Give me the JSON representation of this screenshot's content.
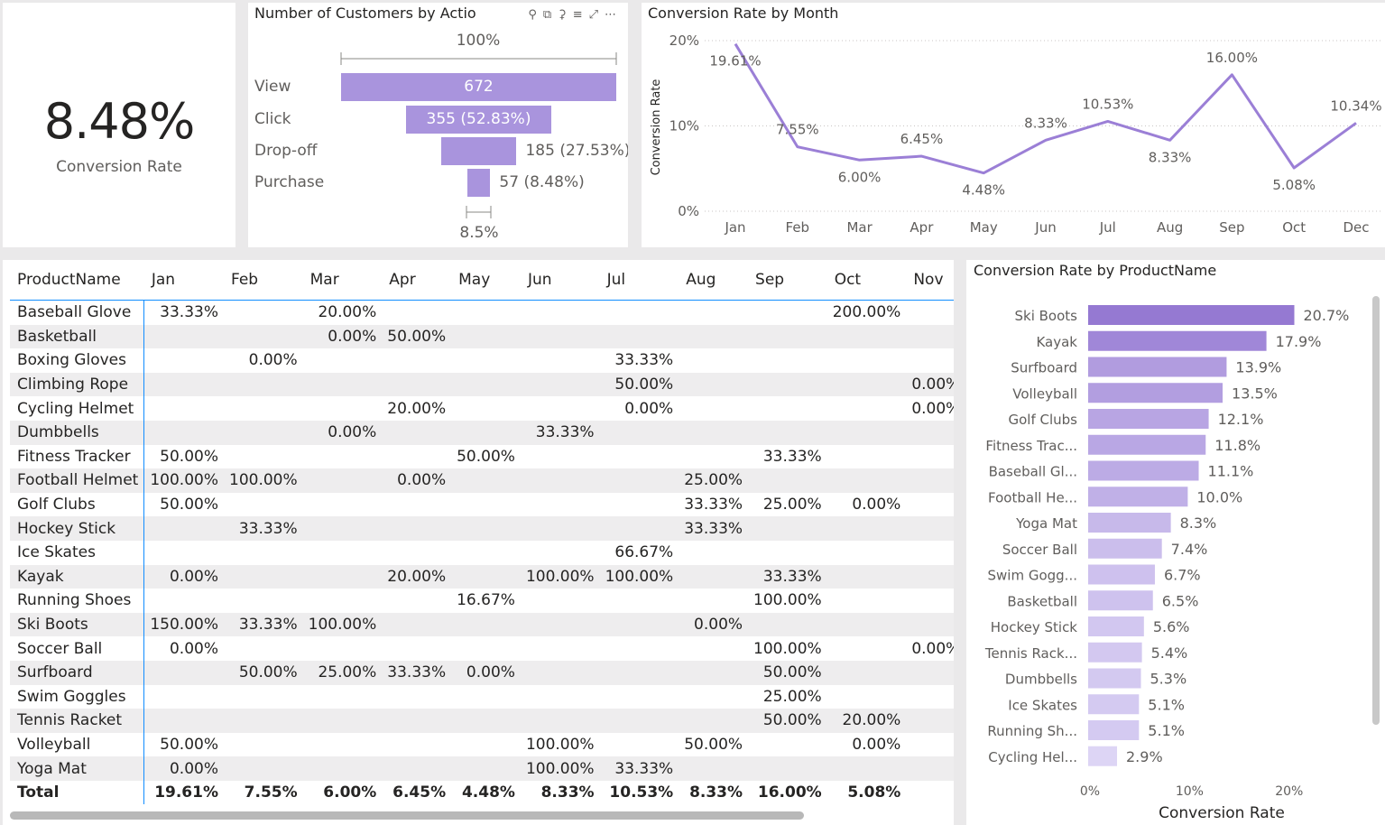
{
  "kpi": {
    "value": "8.48%",
    "label": "Conversion Rate"
  },
  "funnel": {
    "title": "Number of Customers by Actio",
    "top_pct": "100%",
    "bottom_pct": "8.5%",
    "stages": [
      {
        "label": "View",
        "value": 672,
        "text": "672"
      },
      {
        "label": "Click",
        "value": 355,
        "text": "355 (52.83%)"
      },
      {
        "label": "Drop-off",
        "value": 185,
        "text": "185 (27.53%)"
      },
      {
        "label": "Purchase",
        "value": 57,
        "text": "57 (8.48%)"
      }
    ],
    "icons": [
      "pin-icon",
      "copy-icon",
      "bell-icon",
      "filter-icon",
      "focus-mode-icon",
      "more-options-icon"
    ]
  },
  "line_chart": {
    "title": "Conversion Rate by Month",
    "chart_data": {
      "type": "line",
      "x": [
        "Jan",
        "Feb",
        "Mar",
        "Apr",
        "May",
        "Jun",
        "Jul",
        "Aug",
        "Sep",
        "Oct",
        "Dec"
      ],
      "y": [
        19.61,
        7.55,
        6.0,
        6.45,
        4.48,
        8.33,
        10.53,
        8.33,
        16.0,
        5.08,
        10.34
      ],
      "data_labels": [
        "19.61%",
        "7.55%",
        "6.00%",
        "6.45%",
        "4.48%",
        "8.33%",
        "10.53%",
        "8.33%",
        "16.00%",
        "5.08%",
        "10.34%"
      ],
      "ylabel": "Conversion Rate",
      "xlabel": "",
      "yticks": [
        "0%",
        "10%",
        "20%"
      ],
      "ylim": [
        0,
        20
      ],
      "color": "#9b7fd6",
      "grid": true
    }
  },
  "matrix": {
    "columns": [
      "ProductName",
      "Jan",
      "Feb",
      "Mar",
      "Apr",
      "May",
      "Jun",
      "Jul",
      "Aug",
      "Sep",
      "Oct",
      "Nov"
    ],
    "rows": [
      [
        "Baseball Glove",
        "33.33%",
        "",
        "20.00%",
        "",
        "",
        "",
        "",
        "",
        "",
        "200.00%",
        ""
      ],
      [
        "Basketball",
        "",
        "",
        "0.00%",
        "50.00%",
        "",
        "",
        "",
        "",
        "",
        "",
        ""
      ],
      [
        "Boxing Gloves",
        "",
        "0.00%",
        "",
        "",
        "",
        "",
        "33.33%",
        "",
        "",
        "",
        ""
      ],
      [
        "Climbing Rope",
        "",
        "",
        "",
        "",
        "",
        "",
        "50.00%",
        "",
        "",
        "",
        "0.00%"
      ],
      [
        "Cycling Helmet",
        "",
        "",
        "",
        "20.00%",
        "",
        "",
        "0.00%",
        "",
        "",
        "",
        "0.00%"
      ],
      [
        "Dumbbells",
        "",
        "",
        "0.00%",
        "",
        "",
        "33.33%",
        "",
        "",
        "",
        "",
        ""
      ],
      [
        "Fitness Tracker",
        "50.00%",
        "",
        "",
        "",
        "50.00%",
        "",
        "",
        "",
        "33.33%",
        "",
        ""
      ],
      [
        "Football Helmet",
        "100.00%",
        "100.00%",
        "",
        "0.00%",
        "",
        "",
        "",
        "25.00%",
        "",
        "",
        ""
      ],
      [
        "Golf Clubs",
        "50.00%",
        "",
        "",
        "",
        "",
        "",
        "",
        "33.33%",
        "25.00%",
        "0.00%",
        ""
      ],
      [
        "Hockey Stick",
        "",
        "33.33%",
        "",
        "",
        "",
        "",
        "",
        "33.33%",
        "",
        "",
        ""
      ],
      [
        "Ice Skates",
        "",
        "",
        "",
        "",
        "",
        "",
        "66.67%",
        "",
        "",
        "",
        ""
      ],
      [
        "Kayak",
        "0.00%",
        "",
        "",
        "20.00%",
        "",
        "100.00%",
        "100.00%",
        "",
        "33.33%",
        "",
        ""
      ],
      [
        "Running Shoes",
        "",
        "",
        "",
        "",
        "16.67%",
        "",
        "",
        "",
        "100.00%",
        "",
        ""
      ],
      [
        "Ski Boots",
        "150.00%",
        "33.33%",
        "100.00%",
        "",
        "",
        "",
        "",
        "0.00%",
        "",
        "",
        ""
      ],
      [
        "Soccer Ball",
        "0.00%",
        "",
        "",
        "",
        "",
        "",
        "",
        "",
        "100.00%",
        "",
        "0.00%"
      ],
      [
        "Surfboard",
        "",
        "50.00%",
        "25.00%",
        "33.33%",
        "0.00%",
        "",
        "",
        "",
        "50.00%",
        "",
        ""
      ],
      [
        "Swim Goggles",
        "",
        "",
        "",
        "",
        "",
        "",
        "",
        "",
        "25.00%",
        "",
        ""
      ],
      [
        "Tennis Racket",
        "",
        "",
        "",
        "",
        "",
        "",
        "",
        "",
        "50.00%",
        "20.00%",
        ""
      ],
      [
        "Volleyball",
        "50.00%",
        "",
        "",
        "",
        "",
        "100.00%",
        "",
        "50.00%",
        "",
        "0.00%",
        ""
      ],
      [
        "Yoga Mat",
        "0.00%",
        "",
        "",
        "",
        "",
        "100.00%",
        "33.33%",
        "",
        "",
        "",
        ""
      ]
    ],
    "total": [
      "Total",
      "19.61%",
      "7.55%",
      "6.00%",
      "6.45%",
      "4.48%",
      "8.33%",
      "10.53%",
      "8.33%",
      "16.00%",
      "5.08%",
      ""
    ]
  },
  "bar_chart": {
    "title": "Conversion Rate by ProductName",
    "chart_data": {
      "type": "bar",
      "orientation": "horizontal",
      "categories": [
        "Ski Boots",
        "Kayak",
        "Surfboard",
        "Volleyball",
        "Golf Clubs",
        "Fitness Trac...",
        "Baseball Gl...",
        "Football He...",
        "Yoga Mat",
        "Soccer Ball",
        "Swim Gogg...",
        "Basketball",
        "Hockey Stick",
        "Tennis Rack...",
        "Dumbbells",
        "Ice Skates",
        "Running Sh...",
        "Cycling Hel..."
      ],
      "values": [
        20.7,
        17.9,
        13.9,
        13.5,
        12.1,
        11.8,
        11.1,
        10.0,
        8.3,
        7.4,
        6.7,
        6.5,
        5.6,
        5.4,
        5.3,
        5.1,
        5.1,
        2.9
      ],
      "data_labels": [
        "20.7%",
        "17.9%",
        "13.9%",
        "13.5%",
        "12.1%",
        "11.8%",
        "11.1%",
        "10.0%",
        "8.3%",
        "7.4%",
        "6.7%",
        "6.5%",
        "5.6%",
        "5.4%",
        "5.3%",
        "5.1%",
        "5.1%",
        "2.9%"
      ],
      "xlabel": "Conversion Rate",
      "ylabel": "",
      "xticks": [
        "0%",
        "10%",
        "20%"
      ],
      "xlim": [
        0,
        20.7
      ],
      "color_high": "#9579d2",
      "color_low": "#ddd5f5"
    }
  }
}
